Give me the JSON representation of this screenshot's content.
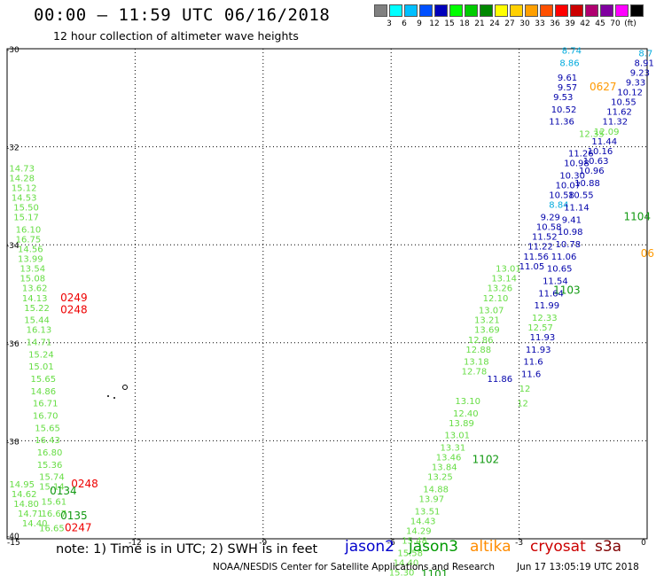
{
  "title": "00:00 – 11:59 UTC 06/16/2018",
  "subtitle": "12 hour collection of altimeter wave heights",
  "legend": {
    "colors": [
      "#808080",
      "#00ffff",
      "#00bfff",
      "#0050ff",
      "#0000bb",
      "#00ff00",
      "#00cc00",
      "#008800",
      "#ffff00",
      "#ffd000",
      "#ffa000",
      "#ff5000",
      "#ff0000",
      "#cc0000",
      "#b00070",
      "#8000a0",
      "#ff00ff",
      "#000000"
    ],
    "labels": [
      "3",
      "6",
      "9",
      "12",
      "15",
      "18",
      "21",
      "24",
      "27",
      "30",
      "33",
      "36",
      "39",
      "42",
      "45",
      "70",
      "(ft)"
    ]
  },
  "note": "note:  1) Time is in UTC;  2) SWH is in feet",
  "satellites": [
    {
      "name": "jason2",
      "color": "#0000cc"
    },
    {
      "name": "jason3",
      "color": "#009900"
    },
    {
      "name": "altika",
      "color": "#ff8c00"
    },
    {
      "name": "cryosat",
      "color": "#cc0000"
    },
    {
      "name": "s3a",
      "color": "#800000"
    }
  ],
  "credit": "NOAA/NESDIS Center for Satellite Applications and Research",
  "timestamp": "Jun 17 13:05:19 UTC 2018",
  "chart_data": {
    "type": "scatter",
    "xlim": [
      -15,
      0
    ],
    "ylim": [
      -40,
      -30
    ],
    "x_ticks": [
      "-15",
      "-12",
      "-9",
      "-6",
      "-3",
      "0"
    ],
    "y_ticks": [
      "-30",
      "-32",
      "-34",
      "-36",
      "-38",
      "-40"
    ],
    "grid": true,
    "colors": {
      "light": "#66dd44",
      "green": "#119911",
      "blue": "#0000aa",
      "cyan": "#00aadd",
      "orange": "#ff9900",
      "red": "#ee0000"
    },
    "track_left": {
      "color": "light",
      "points": [
        {
          "x": -14.95,
          "y": -32.5,
          "v": "14.73"
        },
        {
          "x": -14.95,
          "y": -32.7,
          "v": "14.28"
        },
        {
          "x": -14.9,
          "y": -32.9,
          "v": "15.12"
        },
        {
          "x": -14.9,
          "y": -33.1,
          "v": "14.53"
        },
        {
          "x": -14.85,
          "y": -33.3,
          "v": "15.50"
        },
        {
          "x": -14.85,
          "y": -33.5,
          "v": "15.17"
        },
        {
          "x": -14.8,
          "y": -33.75,
          "v": "16.10"
        },
        {
          "x": -14.8,
          "y": -33.95,
          "v": "16.75"
        },
        {
          "x": -14.75,
          "y": -34.15,
          "v": "14.56"
        },
        {
          "x": -14.75,
          "y": -34.35,
          "v": "13.99"
        },
        {
          "x": -14.7,
          "y": -34.55,
          "v": "13.54"
        },
        {
          "x": -14.7,
          "y": -34.75,
          "v": "15.08"
        },
        {
          "x": -14.65,
          "y": -34.95,
          "v": "13.62"
        },
        {
          "x": -14.65,
          "y": -35.15,
          "v": "14.13"
        },
        {
          "x": -14.6,
          "y": -35.35,
          "v": "15.22"
        },
        {
          "x": -14.6,
          "y": -35.6,
          "v": "15.44"
        },
        {
          "x": -14.55,
          "y": -35.8,
          "v": "16.13"
        },
        {
          "x": -14.55,
          "y": -36.05,
          "v": "14.71"
        },
        {
          "x": -14.5,
          "y": -36.3,
          "v": "15.24"
        },
        {
          "x": -14.5,
          "y": -36.55,
          "v": "15.01"
        },
        {
          "x": -14.45,
          "y": -36.8,
          "v": "15.65"
        },
        {
          "x": -14.45,
          "y": -37.05,
          "v": "14.86"
        },
        {
          "x": -14.4,
          "y": -37.3,
          "v": "16.71"
        },
        {
          "x": -14.4,
          "y": -37.55,
          "v": "16.70"
        },
        {
          "x": -14.35,
          "y": -37.8,
          "v": "15.65"
        },
        {
          "x": -14.35,
          "y": -38.05,
          "v": "16.43"
        },
        {
          "x": -14.3,
          "y": -38.3,
          "v": "16.80"
        },
        {
          "x": -14.3,
          "y": -38.55,
          "v": "15.36"
        },
        {
          "x": -14.25,
          "y": -38.8,
          "v": "15.74"
        },
        {
          "x": -14.25,
          "y": -39.0,
          "v": "15.14"
        },
        {
          "x": -14.2,
          "y": -39.3,
          "v": "15.61"
        },
        {
          "x": -14.2,
          "y": -39.55,
          "v": "16.67"
        },
        {
          "x": -14.25,
          "y": -39.85,
          "v": "16.65"
        },
        {
          "x": -14.95,
          "y": -38.95,
          "v": "14.95"
        },
        {
          "x": -14.9,
          "y": -39.15,
          "v": "14.62"
        },
        {
          "x": -14.85,
          "y": -39.35,
          "v": "14.80"
        },
        {
          "x": -14.75,
          "y": -39.55,
          "v": "14.71"
        },
        {
          "x": -14.65,
          "y": -39.75,
          "v": "14.40"
        }
      ]
    },
    "track_left_ids": [
      {
        "x": -13.75,
        "y": -35.15,
        "v": "0249",
        "color": "red"
      },
      {
        "x": -13.75,
        "y": -35.4,
        "v": "0248",
        "color": "red"
      },
      {
        "x": -13.5,
        "y": -38.95,
        "v": "0248",
        "color": "red"
      },
      {
        "x": -13.65,
        "y": -39.85,
        "v": "0247",
        "color": "red"
      },
      {
        "x": -14.0,
        "y": -39.1,
        "v": "0134",
        "color": "green"
      },
      {
        "x": -13.75,
        "y": -39.6,
        "v": "0135",
        "color": "green"
      }
    ],
    "track_mid": {
      "color": "light",
      "points": [
        {
          "x": -3.55,
          "y": -34.55,
          "v": "13.01"
        },
        {
          "x": -3.65,
          "y": -34.75,
          "v": "13.14"
        },
        {
          "x": -3.75,
          "y": -34.95,
          "v": "13.26"
        },
        {
          "x": -3.85,
          "y": -35.15,
          "v": "12.10"
        },
        {
          "x": -3.95,
          "y": -35.4,
          "v": "13.07"
        },
        {
          "x": -4.05,
          "y": -35.6,
          "v": "13.21"
        },
        {
          "x": -4.05,
          "y": -35.8,
          "v": "13.69"
        },
        {
          "x": -4.2,
          "y": -36.0,
          "v": "12.86"
        },
        {
          "x": -4.25,
          "y": -36.2,
          "v": "12.88"
        },
        {
          "x": -4.3,
          "y": -36.45,
          "v": "13.18"
        },
        {
          "x": -4.35,
          "y": -36.65,
          "v": "12.78"
        },
        {
          "x": -4.5,
          "y": -37.25,
          "v": "13.10"
        },
        {
          "x": -4.55,
          "y": -37.5,
          "v": "12.40"
        },
        {
          "x": -4.65,
          "y": -37.7,
          "v": "13.89"
        },
        {
          "x": -4.75,
          "y": -37.95,
          "v": "13.01"
        },
        {
          "x": -4.85,
          "y": -38.2,
          "v": "13.31"
        },
        {
          "x": -4.95,
          "y": -38.4,
          "v": "13.46"
        },
        {
          "x": -5.05,
          "y": -38.6,
          "v": "13.84"
        },
        {
          "x": -5.15,
          "y": -38.8,
          "v": "13.25"
        },
        {
          "x": -5.25,
          "y": -39.05,
          "v": "14.88"
        },
        {
          "x": -5.35,
          "y": -39.25,
          "v": "13.97"
        },
        {
          "x": -5.45,
          "y": -39.5,
          "v": "13.51"
        },
        {
          "x": -5.55,
          "y": -39.7,
          "v": "14.43"
        },
        {
          "x": -5.65,
          "y": -39.9,
          "v": "14.29"
        },
        {
          "x": -5.75,
          "y": -40.1,
          "v": "15.48"
        },
        {
          "x": -5.85,
          "y": -40.35,
          "v": "15.58"
        },
        {
          "x": -5.95,
          "y": -40.55,
          "v": "14.40"
        },
        {
          "x": -6.05,
          "y": -40.75,
          "v": "15.30"
        }
      ]
    },
    "track_mid_blue": {
      "color": "blue",
      "points": [
        {
          "x": -2.1,
          "y": -30.65,
          "v": "9.61"
        },
        {
          "x": -2.1,
          "y": -30.85,
          "v": "9.57"
        },
        {
          "x": -2.2,
          "y": -31.05,
          "v": "9.53"
        },
        {
          "x": -2.25,
          "y": -31.3,
          "v": "10.52"
        },
        {
          "x": -2.3,
          "y": -31.55,
          "v": "11.36"
        },
        {
          "x": -1.85,
          "y": -32.2,
          "v": "11.26"
        },
        {
          "x": -1.95,
          "y": -32.4,
          "v": "10.98"
        },
        {
          "x": -2.05,
          "y": -32.65,
          "v": "10.30"
        },
        {
          "x": -2.15,
          "y": -32.85,
          "v": "10.07"
        },
        {
          "x": -2.3,
          "y": -33.05,
          "v": "10.58"
        },
        {
          "x": -2.5,
          "y": -33.5,
          "v": "9.29"
        },
        {
          "x": -2.6,
          "y": -33.7,
          "v": "10.58"
        },
        {
          "x": -2.7,
          "y": -33.9,
          "v": "11.52"
        },
        {
          "x": -2.8,
          "y": -34.1,
          "v": "11.22"
        },
        {
          "x": -2.9,
          "y": -34.3,
          "v": "11.56"
        },
        {
          "x": -3.0,
          "y": -34.5,
          "v": "11.05"
        },
        {
          "x": -3.75,
          "y": -36.8,
          "v": "11.86"
        }
      ]
    },
    "track_mid_cyan": [
      {
        "x": -2.0,
        "y": -30.1,
        "v": "8.74"
      },
      {
        "x": -2.05,
        "y": -30.35,
        "v": "8.86"
      },
      {
        "x": -2.3,
        "y": -33.25,
        "v": "8.84"
      }
    ],
    "track_mid_ids": [
      {
        "x": -1.35,
        "y": -30.85,
        "v": "0627",
        "color": "orange"
      },
      {
        "x": -0.55,
        "y": -33.5,
        "v": "1104",
        "color": "green"
      },
      {
        "x": -2.2,
        "y": -35.0,
        "v": "1103",
        "color": "green"
      },
      {
        "x": -4.1,
        "y": -38.45,
        "v": "1102",
        "color": "green"
      },
      {
        "x": -5.3,
        "y": -40.8,
        "v": "1101",
        "color": "green"
      }
    ],
    "track_right": {
      "color": "blue",
      "points": [
        {
          "x": -0.3,
          "y": -30.35,
          "v": "8.91"
        },
        {
          "x": -0.4,
          "y": -30.55,
          "v": "9.23"
        },
        {
          "x": -0.5,
          "y": -30.75,
          "v": "9.33"
        },
        {
          "x": -0.7,
          "y": -30.95,
          "v": "10.12"
        },
        {
          "x": -0.85,
          "y": -31.15,
          "v": "10.55"
        },
        {
          "x": -0.95,
          "y": -31.35,
          "v": "11.62"
        },
        {
          "x": -1.05,
          "y": -31.55,
          "v": "11.32"
        },
        {
          "x": -1.3,
          "y": -31.95,
          "v": "11.44"
        },
        {
          "x": -1.4,
          "y": -32.15,
          "v": "10.16"
        },
        {
          "x": -1.5,
          "y": -32.35,
          "v": "10.63"
        },
        {
          "x": -1.6,
          "y": -32.55,
          "v": "10.96"
        },
        {
          "x": -1.7,
          "y": -32.8,
          "v": "10.88"
        },
        {
          "x": -1.85,
          "y": -33.05,
          "v": "10.55"
        },
        {
          "x": -1.95,
          "y": -33.3,
          "v": "11.14"
        },
        {
          "x": -2.0,
          "y": -33.55,
          "v": "9.41"
        },
        {
          "x": -2.1,
          "y": -33.8,
          "v": "10.98"
        },
        {
          "x": -2.15,
          "y": -34.05,
          "v": "10.78"
        },
        {
          "x": -2.25,
          "y": -34.3,
          "v": "11.06"
        },
        {
          "x": -2.35,
          "y": -34.55,
          "v": "10.65"
        },
        {
          "x": -2.45,
          "y": -34.8,
          "v": "11.54"
        },
        {
          "x": -2.55,
          "y": -35.05,
          "v": "11.64"
        },
        {
          "x": -2.65,
          "y": -35.3,
          "v": "11.99"
        },
        {
          "x": -2.75,
          "y": -35.95,
          "v": "11.93"
        },
        {
          "x": -2.85,
          "y": -36.2,
          "v": "11.93"
        },
        {
          "x": -2.9,
          "y": -36.45,
          "v": "11.6"
        },
        {
          "x": -2.95,
          "y": -36.7,
          "v": "11.6"
        }
      ]
    },
    "track_right_light": [
      {
        "x": -1.25,
        "y": -31.75,
        "v": "12.09"
      },
      {
        "x": -1.6,
        "y": -31.8,
        "v": "12.35"
      },
      {
        "x": -2.7,
        "y": -35.55,
        "v": "12.33"
      },
      {
        "x": -2.8,
        "y": -35.75,
        "v": "12.57"
      },
      {
        "x": -3.0,
        "y": -37.0,
        "v": "12"
      },
      {
        "x": -3.05,
        "y": -37.3,
        "v": "12"
      }
    ],
    "track_right_top": [
      {
        "x": -0.2,
        "y": -30.15,
        "v": "8.7",
        "color": "cyan"
      }
    ],
    "track_right_ids": [
      {
        "x": -0.15,
        "y": -34.25,
        "v": "06",
        "color": "orange"
      }
    ]
  }
}
